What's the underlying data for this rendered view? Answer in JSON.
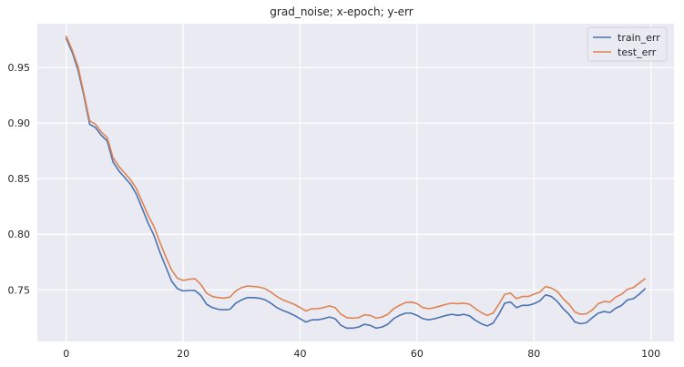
{
  "chart_data": {
    "type": "line",
    "title": "grad_noise; x-epoch; y-err",
    "xlabel": "",
    "ylabel": "",
    "xlim": [
      -4.95,
      103.95
    ],
    "ylim": [
      0.7035,
      0.9895
    ],
    "xticks": [
      0,
      20,
      40,
      60,
      80,
      100
    ],
    "yticks": [
      0.75,
      0.8,
      0.85,
      0.9,
      0.95
    ],
    "ytick_labels": [
      "0.75",
      "0.80",
      "0.85",
      "0.90",
      "0.95"
    ],
    "xtick_labels": [
      "0",
      "20",
      "40",
      "60",
      "80",
      "100"
    ],
    "grid": true,
    "legend_position": "top-right",
    "x": [
      0,
      1,
      2,
      3,
      4,
      5,
      6,
      7,
      8,
      9,
      10,
      11,
      12,
      13,
      14,
      15,
      16,
      17,
      18,
      19,
      20,
      21,
      22,
      23,
      24,
      25,
      26,
      27,
      28,
      29,
      30,
      31,
      32,
      33,
      34,
      35,
      36,
      37,
      38,
      39,
      40,
      41,
      42,
      43,
      44,
      45,
      46,
      47,
      48,
      49,
      50,
      51,
      52,
      53,
      54,
      55,
      56,
      57,
      58,
      59,
      60,
      61,
      62,
      63,
      64,
      65,
      66,
      67,
      68,
      69,
      70,
      71,
      72,
      73,
      74,
      75,
      76,
      77,
      78,
      79,
      80,
      81,
      82,
      83,
      84,
      85,
      86,
      87,
      88,
      89,
      90,
      91,
      92,
      93,
      94,
      95,
      96,
      97,
      98,
      99
    ],
    "series": [
      {
        "name": "train_err",
        "color": "#4c72b0",
        "values": [
          0.976,
          0.964,
          0.948,
          0.925,
          0.899,
          0.896,
          0.889,
          0.884,
          0.865,
          0.857,
          0.851,
          0.845,
          0.836,
          0.823,
          0.81,
          0.799,
          0.784,
          0.771,
          0.758,
          0.751,
          0.749,
          0.7495,
          0.7495,
          0.745,
          0.737,
          0.734,
          0.7325,
          0.732,
          0.7325,
          0.738,
          0.741,
          0.743,
          0.743,
          0.7425,
          0.741,
          0.738,
          0.734,
          0.7315,
          0.7295,
          0.727,
          0.724,
          0.721,
          0.723,
          0.723,
          0.724,
          0.7255,
          0.724,
          0.718,
          0.7155,
          0.7155,
          0.7165,
          0.719,
          0.718,
          0.7155,
          0.7165,
          0.719,
          0.724,
          0.727,
          0.729,
          0.729,
          0.727,
          0.724,
          0.723,
          0.724,
          0.7255,
          0.727,
          0.728,
          0.727,
          0.728,
          0.7265,
          0.7225,
          0.7195,
          0.7175,
          0.72,
          0.728,
          0.738,
          0.739,
          0.734,
          0.736,
          0.736,
          0.7375,
          0.74,
          0.7455,
          0.744,
          0.7395,
          0.733,
          0.728,
          0.721,
          0.7195,
          0.7205,
          0.725,
          0.729,
          0.7305,
          0.7295,
          0.7335,
          0.736,
          0.741,
          0.742,
          0.746,
          0.751
        ]
      },
      {
        "name": "test_err",
        "color": "#dd8452",
        "values": [
          0.978,
          0.966,
          0.951,
          0.927,
          0.902,
          0.899,
          0.892,
          0.887,
          0.869,
          0.861,
          0.855,
          0.849,
          0.841,
          0.829,
          0.817,
          0.807,
          0.793,
          0.78,
          0.768,
          0.7605,
          0.7585,
          0.7595,
          0.76,
          0.755,
          0.747,
          0.744,
          0.743,
          0.7425,
          0.7435,
          0.749,
          0.752,
          0.7535,
          0.753,
          0.7525,
          0.751,
          0.748,
          0.744,
          0.741,
          0.739,
          0.737,
          0.734,
          0.731,
          0.733,
          0.733,
          0.734,
          0.7355,
          0.734,
          0.728,
          0.725,
          0.7245,
          0.725,
          0.7275,
          0.727,
          0.7245,
          0.7255,
          0.728,
          0.733,
          0.736,
          0.7385,
          0.739,
          0.7375,
          0.734,
          0.733,
          0.734,
          0.7355,
          0.737,
          0.738,
          0.7375,
          0.738,
          0.737,
          0.733,
          0.7295,
          0.727,
          0.729,
          0.737,
          0.746,
          0.747,
          0.742,
          0.744,
          0.744,
          0.746,
          0.748,
          0.753,
          0.7515,
          0.7485,
          0.742,
          0.737,
          0.73,
          0.728,
          0.7285,
          0.732,
          0.7375,
          0.7395,
          0.739,
          0.7435,
          0.746,
          0.7505,
          0.752,
          0.756,
          0.76
        ]
      }
    ]
  }
}
